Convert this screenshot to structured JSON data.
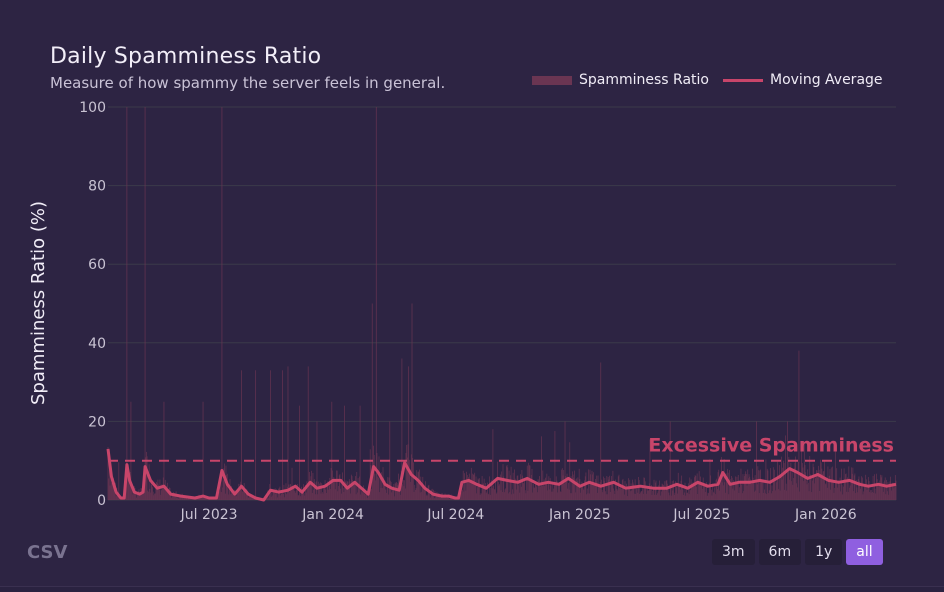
{
  "card": {
    "title": "Daily Spamminess Ratio",
    "subtitle": "Measure of how spammy the server feels in general.",
    "csv_label": "CSV",
    "ranges": [
      "3m",
      "6m",
      "1y",
      "all"
    ],
    "active_range": "all"
  },
  "colors": {
    "background": "#2d2443",
    "bar": "#6a3552",
    "line": "#c8456a",
    "threshold": "#c8456a",
    "active_button": "#8f5fe0"
  },
  "chart_data": {
    "type": "bar",
    "title": "Daily Spamminess Ratio",
    "subtitle": "Measure of how spammy the server feels in general.",
    "xlabel": "",
    "ylabel": "Spamminess Ratio (%)",
    "ylim": [
      0,
      100
    ],
    "y_ticks": [
      "0",
      "20",
      "40",
      "60",
      "80",
      "100"
    ],
    "x_ticks": [
      "Jul 2023",
      "Jan 2024",
      "Jul 2024",
      "Jan 2025",
      "Jul 2025",
      "Jan 2026"
    ],
    "x_range": [
      "2023-02-01",
      "2026-04-15"
    ],
    "grid": true,
    "legend_position": "top-right",
    "series": [
      {
        "name": "Spamminess Ratio",
        "kind": "bar",
        "description": "daily values, mostly under ~8%; spikes listed below",
        "spikes": [
          [
            "2023-03-01",
            100
          ],
          [
            "2023-03-07",
            25
          ],
          [
            "2023-03-28",
            100
          ],
          [
            "2023-04-25",
            25
          ],
          [
            "2023-06-22",
            25
          ],
          [
            "2023-07-20",
            100
          ],
          [
            "2023-08-18",
            33
          ],
          [
            "2023-09-08",
            33
          ],
          [
            "2023-09-30",
            33
          ],
          [
            "2023-10-18",
            33
          ],
          [
            "2023-10-26",
            34
          ],
          [
            "2023-11-12",
            24
          ],
          [
            "2023-11-25",
            34
          ],
          [
            "2023-12-08",
            20
          ],
          [
            "2023-12-30",
            25
          ],
          [
            "2024-01-18",
            24
          ],
          [
            "2024-02-10",
            24
          ],
          [
            "2024-02-28",
            50
          ],
          [
            "2024-03-05",
            100
          ],
          [
            "2024-03-25",
            20
          ],
          [
            "2024-04-12",
            36
          ],
          [
            "2024-04-22",
            34
          ],
          [
            "2024-04-27",
            50
          ],
          [
            "2024-08-25",
            18
          ],
          [
            "2024-12-10",
            20
          ],
          [
            "2025-02-01",
            35
          ],
          [
            "2025-05-15",
            20
          ],
          [
            "2025-09-20",
            20
          ],
          [
            "2025-11-05",
            20
          ],
          [
            "2025-11-22",
            38
          ],
          [
            "2026-01-15",
            15
          ]
        ]
      },
      {
        "name": "Moving Average",
        "kind": "line",
        "points": [
          [
            "2023-02-01",
            13
          ],
          [
            "2023-02-06",
            6
          ],
          [
            "2023-02-13",
            2
          ],
          [
            "2023-02-20",
            0.5
          ],
          [
            "2023-02-25",
            0.5
          ],
          [
            "2023-03-01",
            9
          ],
          [
            "2023-03-05",
            5
          ],
          [
            "2023-03-12",
            2
          ],
          [
            "2023-03-20",
            1.5
          ],
          [
            "2023-03-25",
            2
          ],
          [
            "2023-03-28",
            8.5
          ],
          [
            "2023-04-05",
            5
          ],
          [
            "2023-04-15",
            3
          ],
          [
            "2023-04-25",
            3.5
          ],
          [
            "2023-05-05",
            1.5
          ],
          [
            "2023-05-20",
            1
          ],
          [
            "2023-06-10",
            0.5
          ],
          [
            "2023-06-22",
            1
          ],
          [
            "2023-07-01",
            0.5
          ],
          [
            "2023-07-12",
            0.5
          ],
          [
            "2023-07-20",
            7.5
          ],
          [
            "2023-07-28",
            4
          ],
          [
            "2023-08-08",
            1.5
          ],
          [
            "2023-08-18",
            3.5
          ],
          [
            "2023-08-28",
            1.5
          ],
          [
            "2023-09-08",
            0.5
          ],
          [
            "2023-09-20",
            0
          ],
          [
            "2023-09-30",
            2.5
          ],
          [
            "2023-10-12",
            2
          ],
          [
            "2023-10-26",
            2.5
          ],
          [
            "2023-11-06",
            3.5
          ],
          [
            "2023-11-16",
            2
          ],
          [
            "2023-11-28",
            4.5
          ],
          [
            "2023-12-08",
            3
          ],
          [
            "2023-12-20",
            3.5
          ],
          [
            "2024-01-01",
            5
          ],
          [
            "2024-01-12",
            5
          ],
          [
            "2024-01-22",
            3
          ],
          [
            "2024-02-02",
            4.5
          ],
          [
            "2024-02-12",
            3
          ],
          [
            "2024-02-22",
            1.5
          ],
          [
            "2024-03-01",
            8.5
          ],
          [
            "2024-03-08",
            7
          ],
          [
            "2024-03-18",
            4
          ],
          [
            "2024-03-28",
            3
          ],
          [
            "2024-04-08",
            2.5
          ],
          [
            "2024-04-16",
            9.5
          ],
          [
            "2024-04-26",
            6.5
          ],
          [
            "2024-05-06",
            5
          ],
          [
            "2024-05-16",
            3
          ],
          [
            "2024-05-28",
            1.5
          ],
          [
            "2024-06-10",
            1
          ],
          [
            "2024-06-20",
            1
          ],
          [
            "2024-06-30",
            0.5
          ],
          [
            "2024-07-05",
            0.5
          ],
          [
            "2024-07-10",
            4.5
          ],
          [
            "2024-07-20",
            5
          ],
          [
            "2024-08-01",
            4
          ],
          [
            "2024-08-15",
            3
          ],
          [
            "2024-09-01",
            5.5
          ],
          [
            "2024-09-15",
            5
          ],
          [
            "2024-10-01",
            4.5
          ],
          [
            "2024-10-15",
            5.5
          ],
          [
            "2024-11-01",
            4
          ],
          [
            "2024-11-15",
            4.5
          ],
          [
            "2024-12-01",
            4
          ],
          [
            "2024-12-15",
            5.5
          ],
          [
            "2025-01-01",
            3.5
          ],
          [
            "2025-01-15",
            4.5
          ],
          [
            "2025-02-01",
            3.5
          ],
          [
            "2025-02-20",
            4.5
          ],
          [
            "2025-03-10",
            3
          ],
          [
            "2025-04-01",
            3.5
          ],
          [
            "2025-04-20",
            3
          ],
          [
            "2025-05-10",
            3
          ],
          [
            "2025-05-25",
            4
          ],
          [
            "2025-06-10",
            3
          ],
          [
            "2025-06-25",
            4.5
          ],
          [
            "2025-07-10",
            3.5
          ],
          [
            "2025-07-25",
            4
          ],
          [
            "2025-08-01",
            7
          ],
          [
            "2025-08-12",
            4
          ],
          [
            "2025-08-25",
            4.5
          ],
          [
            "2025-09-10",
            4.5
          ],
          [
            "2025-09-25",
            5
          ],
          [
            "2025-10-10",
            4.5
          ],
          [
            "2025-10-25",
            6
          ],
          [
            "2025-11-08",
            8
          ],
          [
            "2025-11-20",
            7
          ],
          [
            "2025-12-05",
            5.5
          ],
          [
            "2025-12-20",
            6.5
          ],
          [
            "2026-01-05",
            5
          ],
          [
            "2026-01-20",
            4.5
          ],
          [
            "2026-02-05",
            5
          ],
          [
            "2026-02-20",
            4
          ],
          [
            "2026-03-05",
            3.5
          ],
          [
            "2026-03-20",
            4
          ],
          [
            "2026-04-01",
            3.5
          ],
          [
            "2026-04-15",
            4
          ]
        ]
      }
    ],
    "annotations": [
      {
        "type": "hline",
        "y": 10,
        "label": "Excessive Spamminess",
        "style": "dashed"
      }
    ]
  }
}
